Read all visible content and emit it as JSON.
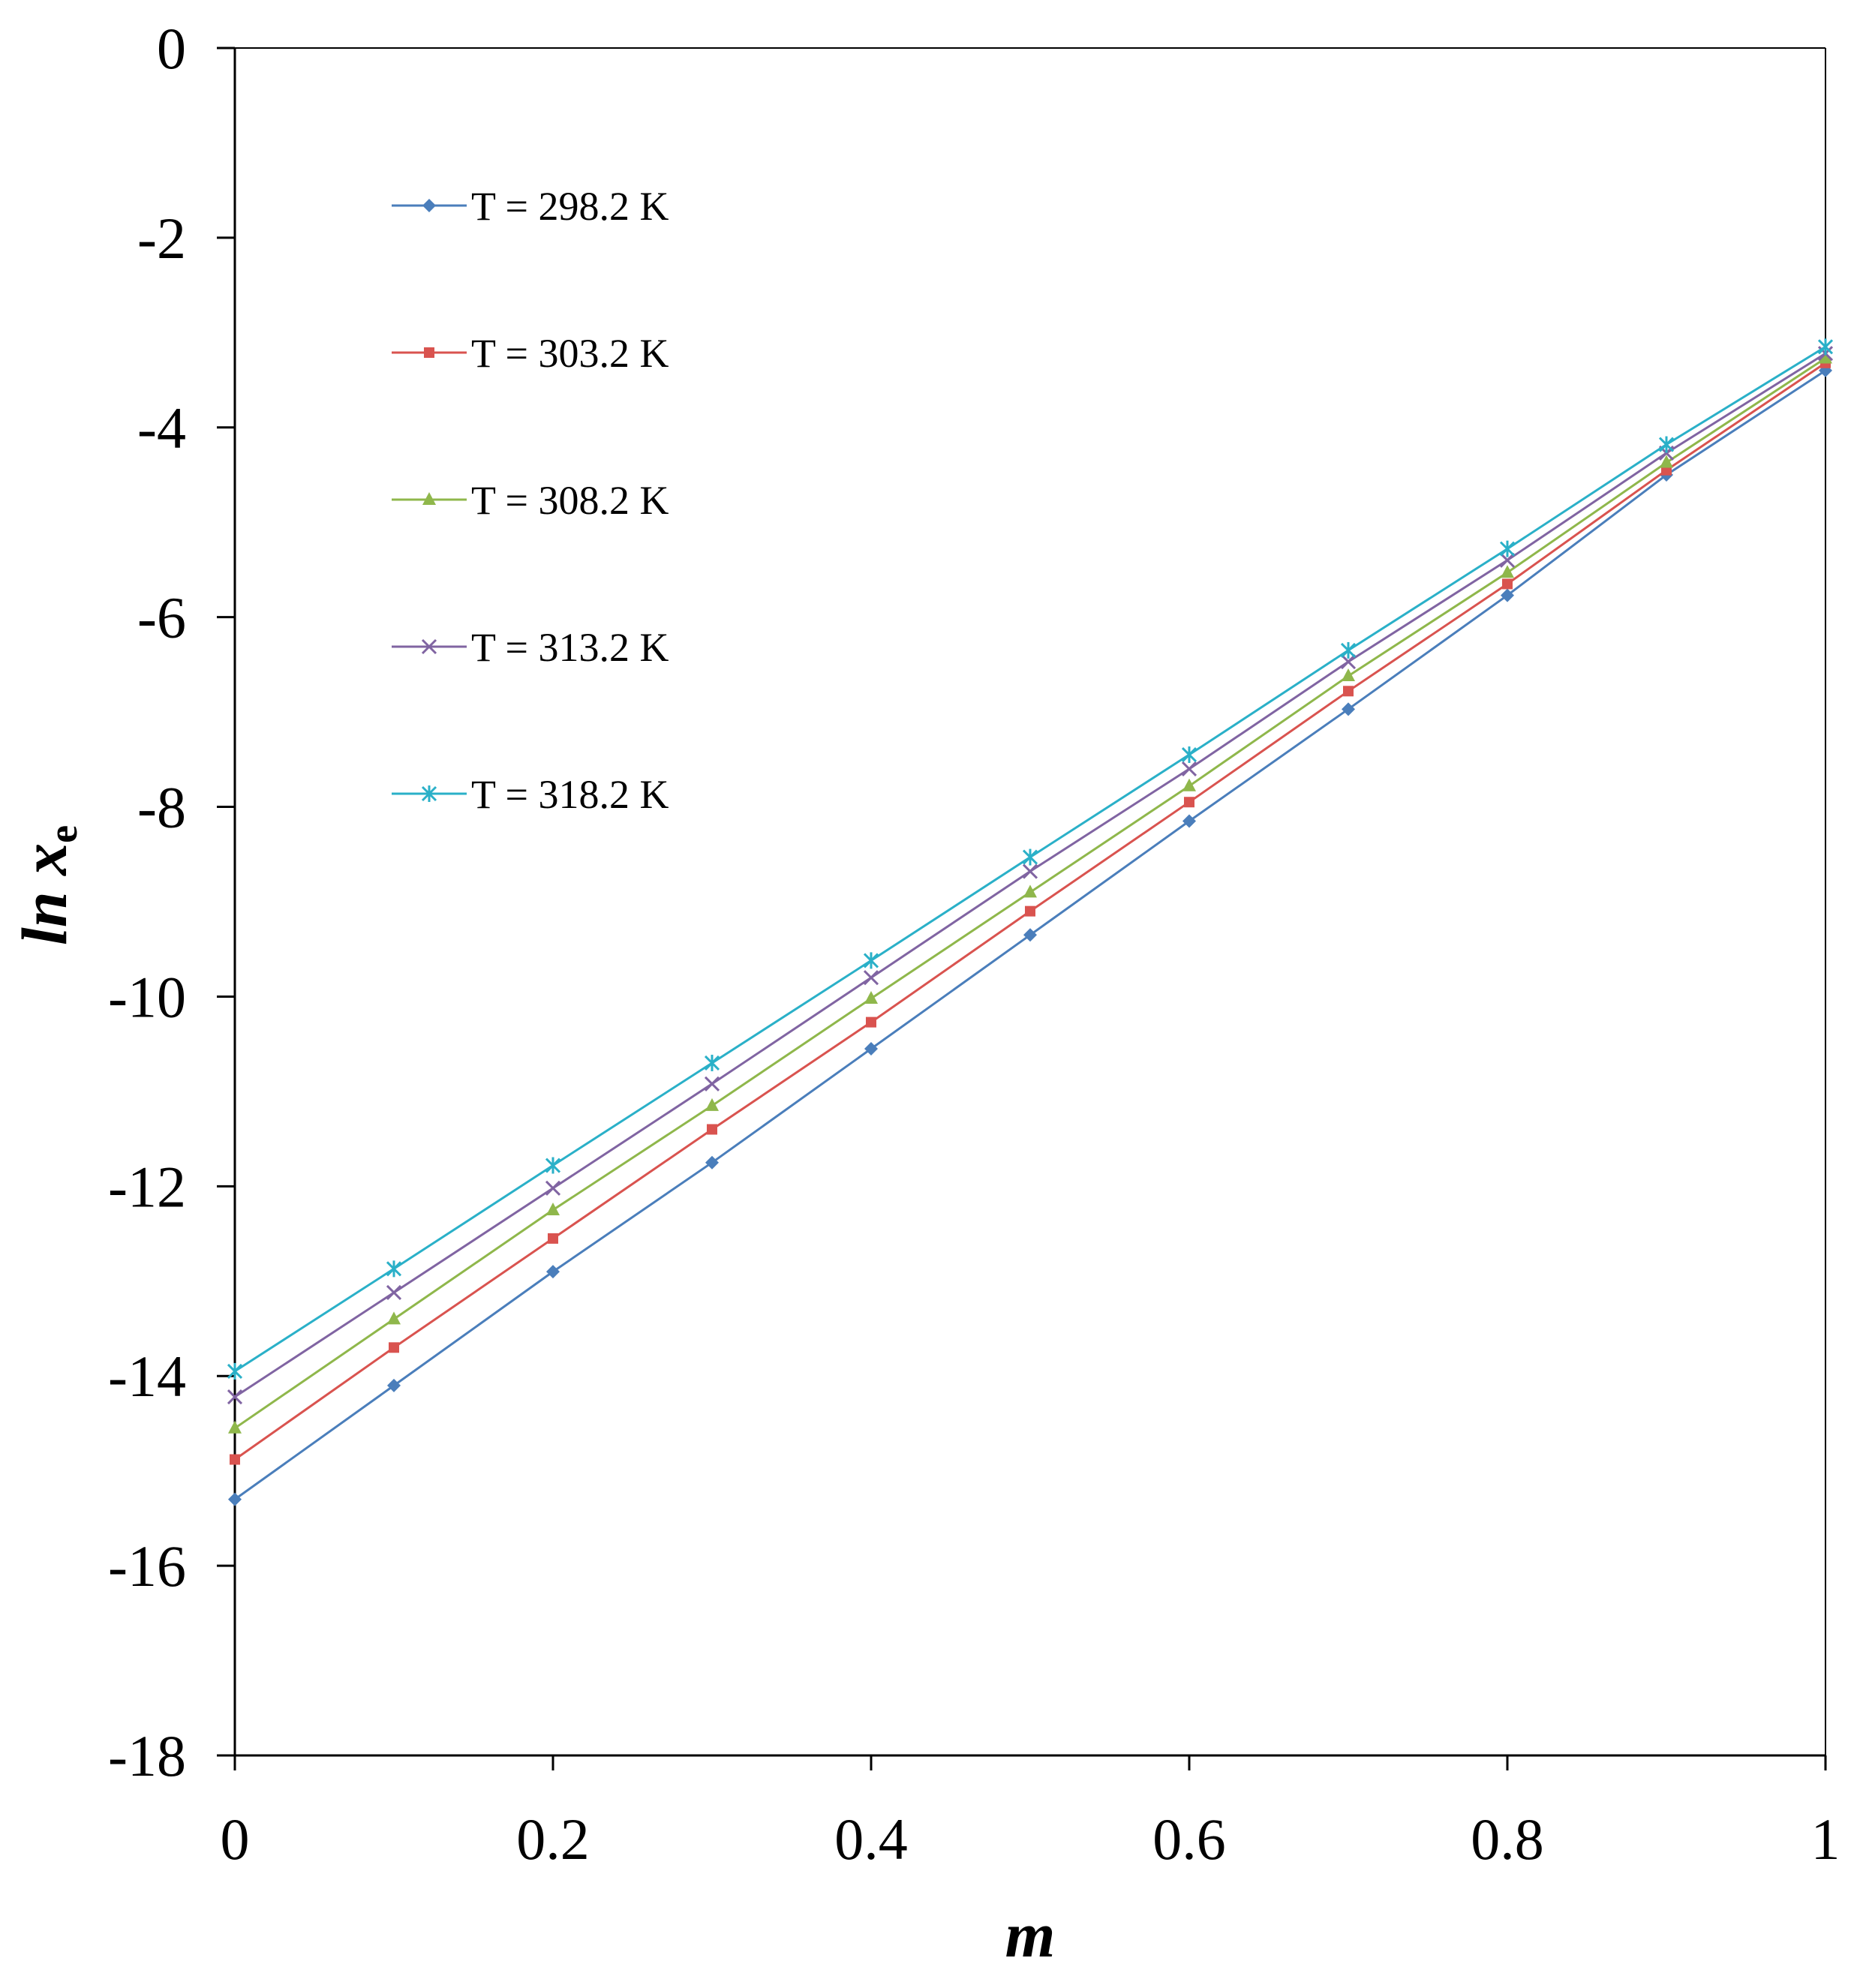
{
  "chart_data": {
    "type": "line",
    "title": "",
    "xlabel": "m",
    "ylabel_main": "ln x",
    "ylabel_sub": "e",
    "xlim": [
      0,
      1
    ],
    "ylim": [
      -18,
      0
    ],
    "xticks": [
      0,
      0.2,
      0.4,
      0.6,
      0.8,
      1
    ],
    "xtick_labels": [
      "0",
      "0.2",
      "0.4",
      "0.6",
      "0.8",
      "1"
    ],
    "yticks": [
      0,
      -2,
      -4,
      -6,
      -8,
      -10,
      -12,
      -14,
      -16,
      -18
    ],
    "ytick_labels": [
      "0",
      "-2",
      "-4",
      "-6",
      "-8",
      "-10",
      "-12",
      "-14",
      "-16",
      "-18"
    ],
    "grid": false,
    "legend_position": "top-left",
    "x": [
      0,
      0.1,
      0.2,
      0.3,
      0.4,
      0.5,
      0.6,
      0.7,
      0.8,
      0.9,
      1.0
    ],
    "series": [
      {
        "name": "T = 298.2 K",
        "color": "#4a7ebb",
        "marker": "diamond",
        "values": [
          -15.3,
          -14.1,
          -12.9,
          -11.75,
          -10.55,
          -9.35,
          -8.15,
          -6.97,
          -5.77,
          -4.5,
          -3.4
        ]
      },
      {
        "name": "T = 303.2 K",
        "color": "#d9534f",
        "marker": "square",
        "values": [
          -14.88,
          -13.7,
          -12.55,
          -11.4,
          -10.27,
          -9.1,
          -7.95,
          -6.78,
          -5.65,
          -4.45,
          -3.32
        ]
      },
      {
        "name": "T = 308.2 K",
        "color": "#8fb74b",
        "marker": "triangle",
        "values": [
          -14.55,
          -13.4,
          -12.25,
          -11.15,
          -10.02,
          -8.9,
          -7.78,
          -6.62,
          -5.53,
          -4.37,
          -3.27
        ]
      },
      {
        "name": "T = 313.2 K",
        "color": "#8064a2",
        "marker": "x",
        "values": [
          -14.22,
          -13.12,
          -12.02,
          -10.92,
          -9.8,
          -8.68,
          -7.6,
          -6.47,
          -5.4,
          -4.27,
          -3.22
        ]
      },
      {
        "name": "T = 318.2 K",
        "color": "#2ab0c8",
        "marker": "star",
        "values": [
          -13.95,
          -12.87,
          -11.78,
          -10.7,
          -9.62,
          -8.53,
          -7.45,
          -6.35,
          -5.28,
          -4.18,
          -3.15
        ]
      }
    ]
  }
}
